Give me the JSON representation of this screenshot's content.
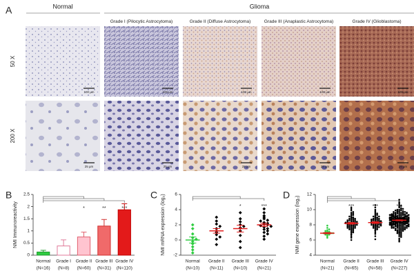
{
  "panel_a": {
    "label": "A",
    "normal_header": "Normal",
    "glioma_header": "Glioma",
    "columns": [
      "Grade I (Pilocytic Astrocytoma)",
      "Grade II (Diffuse Astrocytoma)",
      "Grade III (Anaplastic Astrocytoma)",
      "Grade IV (Glioblastoma)"
    ],
    "rows": [
      "50 X",
      "200 X"
    ],
    "scale_bars": [
      "100 µm",
      "25 µm"
    ]
  },
  "chart_data": [
    {
      "type": "bar",
      "label": "B",
      "ylabel": "NMI Immunoreactivity",
      "categories": [
        "Normal",
        "Grade I",
        "Grade II",
        "Grade III",
        "Grade IV"
      ],
      "n_labels": [
        "(N=16)",
        "(N=8)",
        "(N=60)",
        "(N=31)",
        "(N=110)"
      ],
      "values": [
        0.13,
        0.38,
        0.75,
        1.2,
        1.87
      ],
      "errors": [
        0.07,
        0.25,
        0.2,
        0.27,
        0.25
      ],
      "colors": [
        "#2ecc40",
        "#ffffff",
        "#ffc4d0",
        "#f06a6a",
        "#e31a1a"
      ],
      "edge_colors": [
        "#1f9a2e",
        "#e07a9a",
        "#e06070",
        "#d03030",
        "#c00000"
      ],
      "ylim": [
        0,
        2.5
      ],
      "yticks": [
        0,
        0.5,
        1,
        1.5,
        2,
        2.5
      ],
      "significance": {
        "Grade II": "*",
        "Grade III": "**",
        "Grade IV": "***"
      }
    },
    {
      "type": "dotplot",
      "label": "C",
      "ylabel": "NMI mRNA expression (log₂)",
      "categories": [
        "Normal",
        "Grade II",
        "Grade III",
        "Grade IV"
      ],
      "n_labels": [
        "(N=10)",
        "(N=11)",
        "(N=10)",
        "(N=21)"
      ],
      "points": [
        [
          2.0,
          1.5,
          0.8,
          0.3,
          0.1,
          -0.2,
          -0.5,
          -0.9,
          -1.3,
          -1.7
        ],
        [
          3.0,
          2.5,
          2.1,
          1.8,
          1.5,
          1.2,
          1.0,
          0.7,
          0.4,
          0.1,
          -0.6
        ],
        [
          3.6,
          2.8,
          2.4,
          2.0,
          1.8,
          1.6,
          1.2,
          0.6,
          -0.2,
          -1.0
        ],
        [
          4.1,
          3.6,
          3.2,
          3.0,
          2.8,
          2.6,
          2.5,
          2.3,
          2.2,
          2.1,
          2.0,
          1.9,
          1.8,
          1.7,
          1.5,
          1.4,
          1.2,
          1.0,
          0.8,
          0.5,
          0.1
        ]
      ],
      "means": [
        0,
        1.2,
        1.5,
        2.0
      ],
      "errors": [
        0.4,
        0.3,
        0.45,
        0.22
      ],
      "marker": "diamond",
      "point_colors": [
        "#2ecc40",
        "#000000",
        "#000000",
        "#000000"
      ],
      "mean_colors": [
        "#2ecc40",
        "#e31a1a",
        "#e31a1a",
        "#e31a1a"
      ],
      "ylim": [
        -2,
        6
      ],
      "yticks": [
        -2,
        0,
        2,
        4,
        6
      ],
      "significance": {
        "Grade III": "*",
        "Grade IV": "***"
      }
    },
    {
      "type": "dotplot",
      "label": "D",
      "ylabel": "NMI gene expression (log₂)",
      "categories": [
        "Normal",
        "Grade II",
        "Grade III",
        "Grade IV"
      ],
      "n_labels": [
        "(N=21)",
        "(N=65)",
        "(N=58)",
        "(N=227)"
      ],
      "points": [
        [
          6.3,
          6.5,
          6.6,
          6.7,
          6.7,
          6.8,
          6.8,
          6.8,
          6.9,
          6.9,
          6.9,
          7.0,
          7.0,
          7.0,
          7.1,
          7.1,
          7.2,
          7.3,
          7.4,
          7.6,
          7.9
        ],
        [
          6.0,
          6.3,
          6.5,
          6.7,
          6.8,
          7.0,
          7.1,
          7.2,
          7.3,
          7.4,
          7.5,
          7.5,
          7.6,
          7.6,
          7.7,
          7.7,
          7.8,
          7.8,
          7.9,
          7.9,
          8.0,
          8.0,
          8.0,
          8.1,
          8.1,
          8.1,
          8.2,
          8.2,
          8.2,
          8.3,
          8.3,
          8.3,
          8.4,
          8.4,
          8.5,
          8.5,
          8.6,
          8.6,
          8.7,
          8.7,
          8.8,
          8.8,
          8.9,
          9.0,
          9.0,
          9.1,
          9.2,
          9.3,
          9.4,
          9.5,
          9.6,
          9.7,
          9.9,
          10.1,
          10.3,
          7.0,
          7.4,
          7.8,
          8.0,
          8.2,
          8.4,
          8.6,
          8.9,
          7.6,
          8.3
        ],
        [
          6.1,
          6.5,
          6.8,
          7.0,
          7.2,
          7.3,
          7.4,
          7.5,
          7.6,
          7.7,
          7.8,
          7.8,
          7.9,
          7.9,
          8.0,
          8.0,
          8.1,
          8.1,
          8.2,
          8.2,
          8.3,
          8.3,
          8.3,
          8.4,
          8.4,
          8.5,
          8.5,
          8.6,
          8.6,
          8.7,
          8.7,
          8.8,
          8.8,
          8.9,
          9.0,
          9.0,
          9.1,
          9.2,
          9.3,
          9.4,
          9.5,
          9.6,
          9.8,
          10.0,
          10.3,
          10.6,
          7.6,
          8.0,
          8.2,
          8.4,
          8.6,
          8.9,
          7.9,
          8.1,
          8.5,
          8.7,
          9.1,
          7.7
        ],
        [
          5.8,
          6.2,
          6.5,
          6.7,
          6.9,
          7.0,
          7.1,
          7.2,
          7.3,
          7.4,
          7.5,
          7.5,
          7.6,
          7.6,
          7.7,
          7.7,
          7.8,
          7.8,
          7.8,
          7.9,
          7.9,
          7.9,
          8.0,
          8.0,
          8.0,
          8.0,
          8.1,
          8.1,
          8.1,
          8.1,
          8.2,
          8.2,
          8.2,
          8.2,
          8.3,
          8.3,
          8.3,
          8.3,
          8.3,
          8.4,
          8.4,
          8.4,
          8.4,
          8.4,
          8.5,
          8.5,
          8.5,
          8.5,
          8.5,
          8.5,
          8.6,
          8.6,
          8.6,
          8.6,
          8.6,
          8.6,
          8.7,
          8.7,
          8.7,
          8.7,
          8.7,
          8.7,
          8.8,
          8.8,
          8.8,
          8.8,
          8.8,
          8.9,
          8.9,
          8.9,
          8.9,
          8.9,
          9.0,
          9.0,
          9.0,
          9.0,
          9.1,
          9.1,
          9.1,
          9.1,
          9.2,
          9.2,
          9.2,
          9.3,
          9.3,
          9.3,
          9.4,
          9.4,
          9.5,
          9.5,
          9.6,
          9.6,
          9.7,
          9.8,
          9.9,
          10.0,
          10.1,
          10.3,
          10.6,
          11.3,
          6.0,
          6.4,
          6.6,
          6.8,
          7.0,
          7.1,
          7.2,
          7.3,
          7.4,
          7.5,
          7.5,
          7.6,
          7.6,
          7.7,
          7.7,
          7.8,
          7.8,
          7.9,
          7.9,
          8.0,
          8.0,
          8.0,
          8.1,
          8.1,
          8.1,
          8.2,
          8.2,
          8.2,
          8.3,
          8.3,
          8.3,
          8.4,
          8.4,
          8.4,
          8.4,
          8.5,
          8.5,
          8.5,
          8.5,
          8.6,
          8.6,
          8.6,
          8.6,
          8.6,
          8.7,
          8.7,
          8.7,
          8.7,
          8.7,
          8.8,
          8.8,
          8.8,
          8.8,
          8.8,
          8.9,
          8.9,
          8.9,
          8.9,
          9.0,
          9.0,
          9.0,
          9.0,
          9.1,
          9.1,
          9.1,
          9.2,
          9.2,
          9.2,
          9.3,
          9.3,
          9.3,
          9.4,
          9.4,
          9.5,
          9.5,
          9.6,
          9.6,
          9.7,
          9.7,
          9.8,
          9.8,
          9.9,
          10.0,
          10.1,
          10.2,
          10.4,
          10.5,
          10.8,
          11.0,
          6.9,
          7.3,
          7.6,
          7.9,
          8.2,
          8.4,
          8.6,
          8.8,
          9.0,
          9.2,
          9.4,
          8.0,
          8.1,
          8.2,
          8.3,
          8.4,
          8.5,
          8.6,
          8.7,
          8.8,
          8.9,
          9.0,
          9.1,
          8.5,
          8.6,
          8.7,
          8.4,
          8.3,
          8.8,
          7.8,
          9.3,
          8.6,
          8.7,
          8.5,
          8.9,
          8.2,
          9.6,
          7.4
        ]
      ],
      "means": [
        6.9,
        8.2,
        8.3,
        8.6
      ],
      "errors": [
        0.08,
        0.11,
        0.12,
        0.06
      ],
      "marker": "circle",
      "point_colors": [
        "#2ecc40",
        "#000000",
        "#000000",
        "#000000"
      ],
      "mean_colors": [
        "#e31a1a",
        "#e31a1a",
        "#e31a1a",
        "#e31a1a"
      ],
      "ylim": [
        4,
        12
      ],
      "yticks": [
        4,
        6,
        8,
        10,
        12
      ],
      "significance": {
        "Grade II": "***",
        "Grade III": "***",
        "Grade IV": "***"
      }
    }
  ]
}
